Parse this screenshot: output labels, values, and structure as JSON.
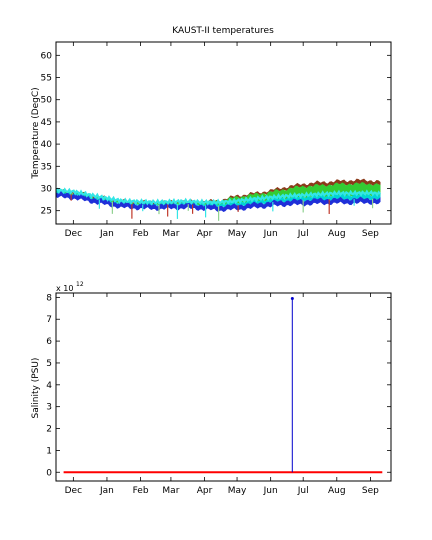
{
  "figure_background": "#ffffff",
  "chart_data": [
    {
      "type": "area",
      "title": "KAUST-II temperatures",
      "ylabel": "Temperature (DegC)",
      "xlabel": "",
      "x_is_date": true,
      "ylim": [
        22,
        63
      ],
      "yticks": [
        25,
        30,
        35,
        40,
        45,
        50,
        55,
        60
      ],
      "xlim": [
        "2010-11-15",
        "2011-09-20"
      ],
      "xticks": [
        {
          "label": "Dec",
          "date": "2010-12-01"
        },
        {
          "label": "Jan",
          "date": "2011-01-01"
        },
        {
          "label": "Feb",
          "date": "2011-02-01"
        },
        {
          "label": "Mar",
          "date": "2011-03-01"
        },
        {
          "label": "Apr",
          "date": "2011-04-01"
        },
        {
          "label": "May",
          "date": "2011-05-01"
        },
        {
          "label": "Jun",
          "date": "2011-06-01"
        },
        {
          "label": "Jul",
          "date": "2011-07-01"
        },
        {
          "label": "Aug",
          "date": "2011-08-01"
        },
        {
          "label": "Sep",
          "date": "2011-09-01"
        }
      ],
      "grid": false,
      "legend": "none",
      "colors": {
        "surface": "#8b3a1a",
        "upper": "#33cc33",
        "mid": "#00d4d4",
        "lower": "#1f2fd8",
        "cyan": "#33e6e6"
      },
      "series": [
        {
          "x": [
            "2010-11-15",
            "2010-12-01",
            "2010-12-15",
            "2011-01-01",
            "2011-01-15",
            "2011-02-01",
            "2011-02-15",
            "2011-03-01",
            "2011-03-15",
            "2011-04-01",
            "2011-04-15",
            "2011-05-01",
            "2011-05-15",
            "2011-06-01",
            "2011-06-15",
            "2011-07-01",
            "2011-07-15",
            "2011-08-01",
            "2011-08-15",
            "2011-09-01",
            "2011-09-10"
          ],
          "values": [
            29.6,
            29.3,
            28.6,
            27.8,
            27.2,
            27.0,
            26.9,
            27.0,
            27.1,
            27.0,
            27.3,
            28.3,
            28.8,
            29.5,
            30.3,
            31.0,
            31.3,
            31.6,
            31.8,
            31.8,
            31.5
          ]
        },
        {
          "x": [
            "2010-11-15",
            "2010-12-01",
            "2010-12-15",
            "2011-01-01",
            "2011-01-15",
            "2011-02-01",
            "2011-02-15",
            "2011-03-01",
            "2011-03-15",
            "2011-04-01",
            "2011-04-15",
            "2011-05-01",
            "2011-05-15",
            "2011-06-01",
            "2011-06-15",
            "2011-07-01",
            "2011-07-15",
            "2011-08-01",
            "2011-08-15",
            "2011-09-01",
            "2011-09-10"
          ],
          "values": [
            29.4,
            29.1,
            28.4,
            27.6,
            27.0,
            26.8,
            26.7,
            26.8,
            26.9,
            26.8,
            27.1,
            28.0,
            28.5,
            29.1,
            29.8,
            30.4,
            30.6,
            30.9,
            31.0,
            31.0,
            30.8
          ]
        },
        {
          "x": [
            "2010-11-15",
            "2010-12-01",
            "2010-12-15",
            "2011-01-01",
            "2011-01-15",
            "2011-02-01",
            "2011-02-15",
            "2011-03-01",
            "2011-03-15",
            "2011-04-01",
            "2011-04-15",
            "2011-05-01",
            "2011-05-15",
            "2011-06-01",
            "2011-06-15",
            "2011-07-01",
            "2011-07-15",
            "2011-08-01",
            "2011-08-15",
            "2011-09-01",
            "2011-09-10"
          ],
          "values": [
            29.2,
            28.9,
            28.2,
            27.4,
            26.8,
            26.6,
            26.5,
            26.6,
            26.7,
            26.5,
            26.5,
            26.8,
            27.2,
            27.6,
            27.9,
            28.1,
            28.3,
            28.5,
            28.5,
            28.6,
            28.4
          ]
        },
        {
          "x": [
            "2010-11-15",
            "2010-12-01",
            "2010-12-15",
            "2011-01-01",
            "2011-01-15",
            "2011-02-01",
            "2011-02-15",
            "2011-03-01",
            "2011-03-15",
            "2011-04-01",
            "2011-04-15",
            "2011-05-01",
            "2011-05-15",
            "2011-06-01",
            "2011-06-15",
            "2011-07-01",
            "2011-07-15",
            "2011-08-01",
            "2011-08-15",
            "2011-09-01",
            "2011-09-10"
          ],
          "values": [
            29.0,
            28.7,
            28.0,
            27.2,
            26.6,
            26.4,
            26.3,
            26.4,
            26.5,
            26.2,
            26.0,
            26.2,
            26.5,
            26.9,
            27.2,
            27.3,
            27.5,
            27.6,
            27.6,
            27.7,
            27.5
          ]
        }
      ]
    },
    {
      "type": "line",
      "title": "",
      "ylabel": "Salinity (PSU)",
      "xlabel": "",
      "y_exponent_label": "x 10",
      "y_exponent": "12",
      "x_is_date": true,
      "ylim": [
        -0.4,
        8.2
      ],
      "yticks": [
        0,
        1,
        2,
        3,
        4,
        5,
        6,
        7,
        8
      ],
      "xlim": [
        "2010-11-15",
        "2011-09-20"
      ],
      "xticks": [
        {
          "label": "Dec",
          "date": "2010-12-01"
        },
        {
          "label": "Jan",
          "date": "2011-01-01"
        },
        {
          "label": "Feb",
          "date": "2011-02-01"
        },
        {
          "label": "Mar",
          "date": "2011-03-01"
        },
        {
          "label": "Apr",
          "date": "2011-04-01"
        },
        {
          "label": "May",
          "date": "2011-05-01"
        },
        {
          "label": "Jun",
          "date": "2011-06-01"
        },
        {
          "label": "Jul",
          "date": "2011-07-01"
        },
        {
          "label": "Aug",
          "date": "2011-08-01"
        },
        {
          "label": "Sep",
          "date": "2011-09-01"
        }
      ],
      "grid": false,
      "legend": "none",
      "series": [
        {
          "color": "#ff0000",
          "x": [
            "2010-11-22",
            "2011-09-12"
          ],
          "values": [
            0,
            0
          ]
        },
        {
          "color": "#0000cc",
          "x": [
            "2011-06-21",
            "2011-06-21"
          ],
          "values": [
            0,
            7.95
          ]
        }
      ]
    }
  ]
}
